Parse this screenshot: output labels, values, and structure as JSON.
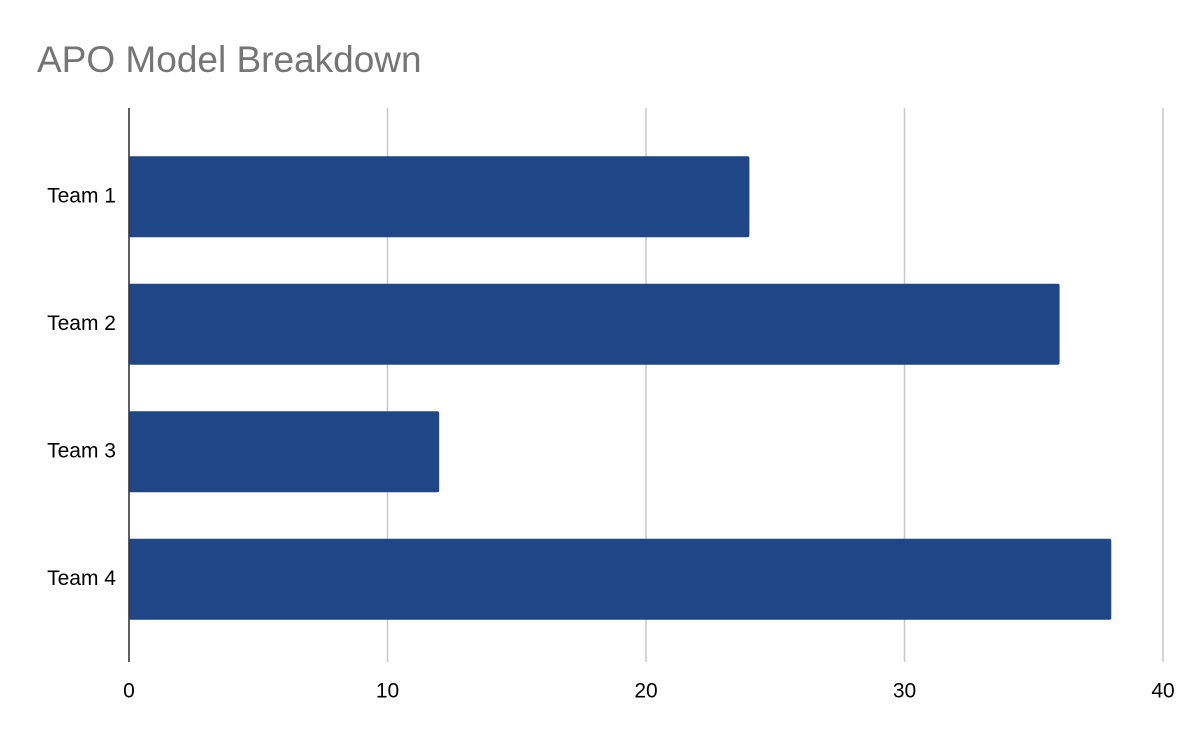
{
  "chart_data": {
    "type": "bar",
    "orientation": "horizontal",
    "title": "APO Model Breakdown",
    "categories": [
      "Team 1",
      "Team 2",
      "Team 3",
      "Team 4"
    ],
    "values": [
      24,
      36,
      12,
      38
    ],
    "color": "#1f4687",
    "xlim": [
      0,
      40
    ],
    "xticks": [
      0,
      10,
      20,
      30,
      40
    ],
    "grid": true
  }
}
